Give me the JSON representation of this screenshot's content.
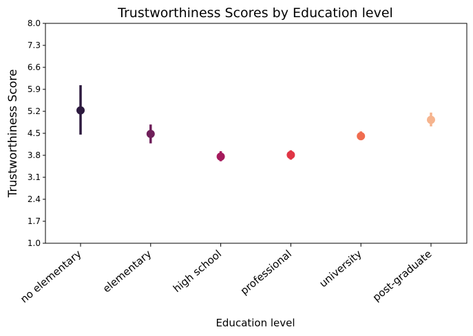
{
  "chart_data": {
    "type": "scatter",
    "title": "Trustworthiness Scores by Education level",
    "xlabel": "Education level",
    "ylabel": "Trustworthiness Score",
    "ylim": [
      1.0,
      8.0
    ],
    "yticks": [
      "1.0",
      "1.7",
      "2.4",
      "3.1",
      "3.8",
      "4.5",
      "5.2",
      "5.9",
      "6.6",
      "7.3",
      "8.0"
    ],
    "categories": [
      "no elementary",
      "elementary",
      "high school",
      "professional",
      "university",
      "post-graduate"
    ],
    "points": [
      {
        "category": "no elementary",
        "value": 5.23,
        "low": 4.46,
        "high": 6.03,
        "color": "#2d1a3f"
      },
      {
        "category": "elementary",
        "value": 4.48,
        "low": 4.18,
        "high": 4.78,
        "color": "#6f1f5a"
      },
      {
        "category": "high school",
        "value": 3.76,
        "low": 3.61,
        "high": 3.93,
        "color": "#a51a5c"
      },
      {
        "category": "professional",
        "value": 3.81,
        "low": 3.66,
        "high": 3.96,
        "color": "#e03545"
      },
      {
        "category": "university",
        "value": 4.41,
        "low": 4.28,
        "high": 4.56,
        "color": "#f06c4f"
      },
      {
        "category": "post-graduate",
        "value": 4.93,
        "low": 4.72,
        "high": 5.16,
        "color": "#f6b48e"
      }
    ],
    "grid": false,
    "legend": "none"
  }
}
